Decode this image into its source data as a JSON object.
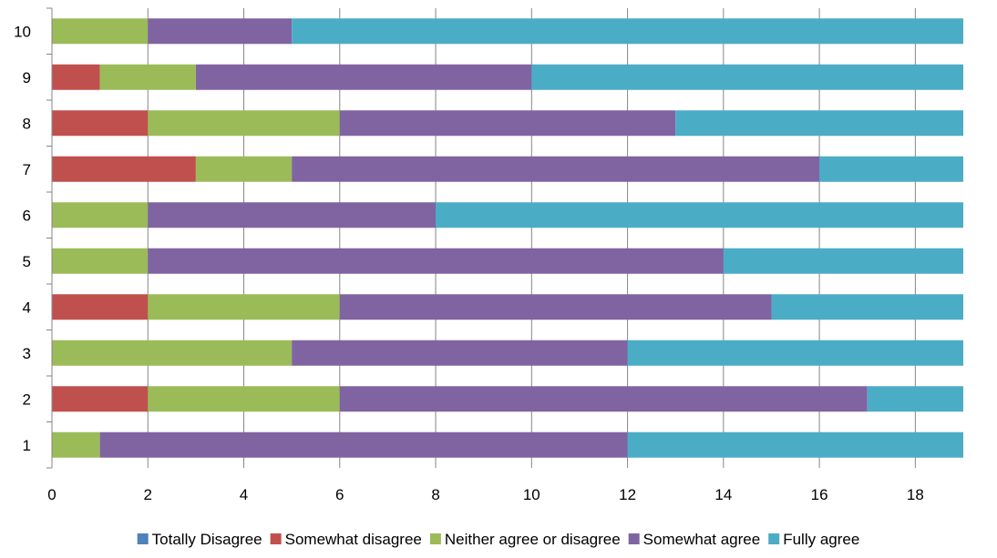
{
  "chart_data": {
    "type": "bar",
    "orientation": "horizontal",
    "stacked": true,
    "categories": [
      "1",
      "2",
      "3",
      "4",
      "5",
      "6",
      "7",
      "8",
      "9",
      "10"
    ],
    "series": [
      {
        "name": "Totally Disagree",
        "color": "#4F81BD",
        "values": [
          0,
          0,
          0,
          0,
          0,
          0,
          0,
          0,
          0,
          0
        ]
      },
      {
        "name": "Somewhat disagree",
        "color": "#C0504D",
        "values": [
          0,
          2,
          0,
          2,
          0,
          0,
          3,
          2,
          1,
          0
        ]
      },
      {
        "name": "Neither agree or disagree",
        "color": "#9BBB59",
        "values": [
          1,
          4,
          5,
          4,
          2,
          2,
          2,
          4,
          2,
          2
        ]
      },
      {
        "name": "Somewhat agree",
        "color": "#8064A2",
        "values": [
          11,
          11,
          7,
          9,
          12,
          6,
          11,
          7,
          7,
          3
        ]
      },
      {
        "name": "Fully agree",
        "color": "#4BACC6",
        "values": [
          7,
          2,
          7,
          4,
          5,
          11,
          3,
          6,
          9,
          14
        ]
      }
    ],
    "x_ticks": [
      "0",
      "2",
      "4",
      "6",
      "8",
      "10",
      "12",
      "14",
      "16",
      "18"
    ],
    "xlim": [
      0,
      19
    ],
    "grid": true,
    "legend_position": "bottom",
    "title": "",
    "xlabel": "",
    "ylabel": ""
  }
}
